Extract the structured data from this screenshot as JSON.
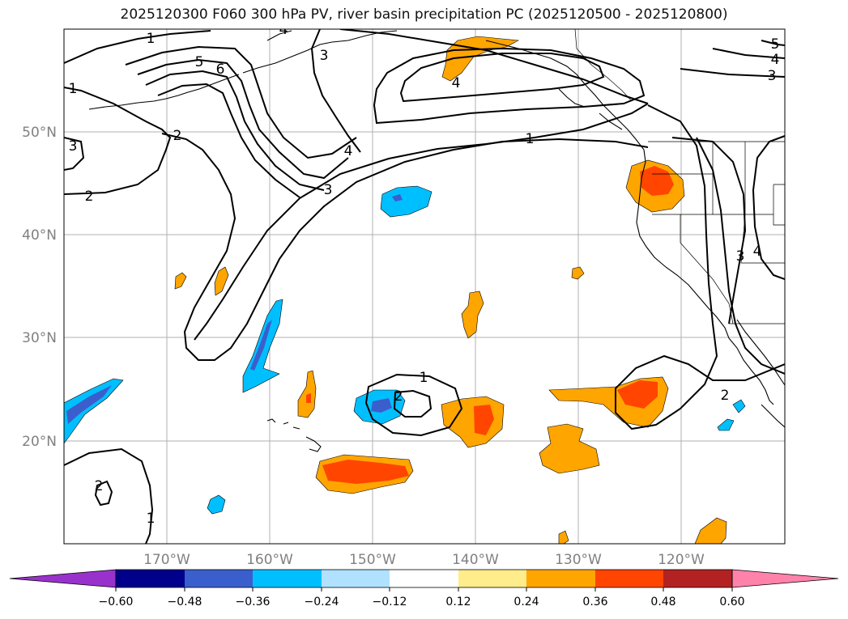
{
  "title": "2025120300 F060 300 hPa PV, river basin precipitation PC (2025120500 - 2025120800)",
  "map": {
    "lat_labels": [
      "50°N",
      "40°N",
      "30°N",
      "20°N"
    ],
    "lon_labels": [
      "170°W",
      "160°W",
      "150°W",
      "140°W",
      "130°W",
      "120°W"
    ],
    "contour_labels": [
      "1",
      "5",
      "6",
      "2",
      "3",
      "4",
      "1",
      "4",
      "1",
      "3",
      "2",
      "3",
      "4",
      "5",
      "4",
      "3",
      "3",
      "4",
      "1",
      "2",
      "2",
      "2",
      "1"
    ]
  },
  "colorbar": {
    "ticks": [
      "−0.60",
      "−0.48",
      "−0.36",
      "−0.24",
      "−0.12",
      "0.12",
      "0.24",
      "0.36",
      "0.48",
      "0.60"
    ],
    "colors": [
      "#9932cc",
      "#00008b",
      "#3a5fcd",
      "#00bfff",
      "#b0e2ff",
      "#ffffff",
      "#ffec8b",
      "#ffa500",
      "#ff4500",
      "#b22222",
      "#ff82ab"
    ]
  }
}
